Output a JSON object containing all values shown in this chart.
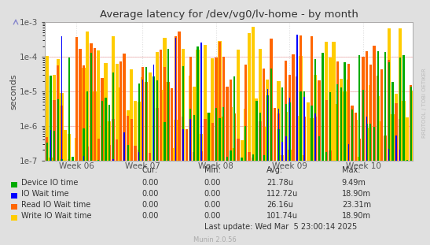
{
  "title": "Average latency for /dev/vg0/lv-home - by month",
  "ylabel": "seconds",
  "bg_color": "#e0e0e0",
  "plot_bg_color": "#ffffff",
  "grid_color": "#cccccc",
  "border_color": "#aaaaaa",
  "xtick_labels": [
    "Week 06",
    "Week 07",
    "Week 08",
    "Week 09",
    "Week 10"
  ],
  "ylim_low": 1e-07,
  "ylim_high": 0.001,
  "series": [
    {
      "name": "Device IO time",
      "color": "#00aa00"
    },
    {
      "name": "IO Wait time",
      "color": "#0000ff"
    },
    {
      "name": "Read IO Wait time",
      "color": "#ff6600"
    },
    {
      "name": "Write IO Wait time",
      "color": "#ffcc00"
    }
  ],
  "legend_headers": [
    "Cur:",
    "Min:",
    "Avg:",
    "Max:"
  ],
  "legend_rows": [
    [
      "Device IO time",
      "0.00",
      "0.00",
      "21.78u",
      "9.49m"
    ],
    [
      "IO Wait time",
      "0.00",
      "0.00",
      "112.72u",
      "18.90m"
    ],
    [
      "Read IO Wait time",
      "0.00",
      "0.00",
      "26.16u",
      "23.31m"
    ],
    [
      "Write IO Wait time",
      "0.00",
      "0.00",
      "101.74u",
      "18.90m"
    ]
  ],
  "last_update": "Last update: Wed Mar  5 23:00:14 2025",
  "watermark": "RRDTOOL / TOBI OETIKER",
  "munin_version": "Munin 2.0.56",
  "num_bars": 100,
  "seed": 7
}
